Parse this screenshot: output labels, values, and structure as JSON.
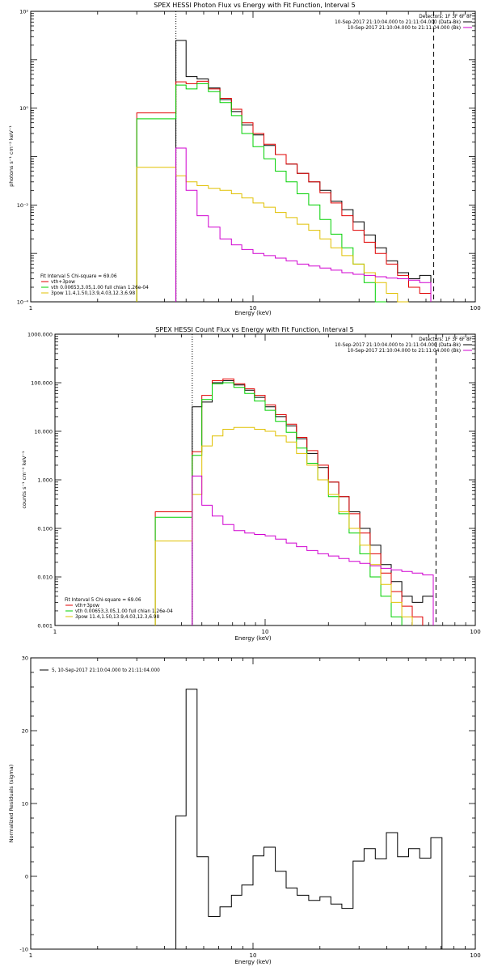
{
  "chart_data": [
    {
      "type": "line",
      "title": "SPEX HESSI Photon Flux vs Energy with Fit Function, Interval 5",
      "xlabel": "Energy (keV)",
      "ylabel": "photons s⁻¹ cm⁻² keV⁻¹",
      "xscale": "log",
      "yscale": "log",
      "xlim": [
        1,
        100
      ],
      "ylim": [
        0.0001,
        100
      ],
      "x_ticks": [
        "1",
        "10",
        "100"
      ],
      "y_ticks": [
        "10⁻⁴",
        "10⁻²",
        "10⁰",
        "10²"
      ],
      "legend_top": [
        "Detectors: 1F 3F 6F 8F",
        "10-Sep-2017 21:10:04.000 to 21:11:04.000 (Data-Bk)",
        "10-Sep-2017 21:10:04.000 to 21:11:04.000 (Bk)"
      ],
      "legend_bottom": [
        "Fit Interval 5   Chi-square = 69.06",
        "vth+3pow",
        "vth 0.00653,3.05,1.00  full chian 1.26e-04",
        "3pow 11.4,1.50,13.9,4.03,12.3,6.98"
      ],
      "vlines": [
        {
          "x": 4.5,
          "style": "dotted"
        },
        {
          "x": 65,
          "style": "dashed"
        }
      ],
      "bin_edges": [
        3,
        4.5,
        5,
        5.6,
        6.3,
        7.1,
        8,
        8.9,
        10,
        11.2,
        12.6,
        14.1,
        15.8,
        17.8,
        20,
        22.4,
        25.1,
        28.2,
        31.6,
        35.5,
        39.8,
        44.7,
        50.1,
        56.2,
        63.1
      ],
      "series": [
        {
          "name": "Data-Bk",
          "color": "#000000",
          "values": [
            null,
            25,
            4.5,
            4,
            2.6,
            1.5,
            0.85,
            0.45,
            0.28,
            0.17,
            0.11,
            0.07,
            0.045,
            0.03,
            0.02,
            0.012,
            0.008,
            0.0045,
            0.0024,
            0.0013,
            0.0007,
            0.0004,
            0.0003,
            0.00035
          ]
        },
        {
          "name": "vth+3pow",
          "color": "#e00000",
          "values": [
            0.8,
            3.5,
            3.2,
            3.6,
            2.5,
            1.6,
            0.95,
            0.5,
            0.3,
            0.18,
            0.11,
            0.07,
            0.045,
            0.03,
            0.018,
            0.011,
            0.006,
            0.003,
            0.0017,
            0.001,
            0.0006,
            0.00035,
            0.0002,
            0.00015
          ]
        },
        {
          "name": "vth",
          "color": "#00d000",
          "values": [
            0.6,
            3,
            2.5,
            3.2,
            2.2,
            1.3,
            0.7,
            0.3,
            0.16,
            0.09,
            0.05,
            0.03,
            0.017,
            0.01,
            0.005,
            0.0025,
            0.0013,
            0.0006,
            0.00025,
            0.0001,
            null,
            null,
            null,
            null
          ]
        },
        {
          "name": "3pow",
          "color": "#e0c000",
          "values": [
            0.06,
            0.04,
            0.03,
            0.025,
            0.022,
            0.02,
            0.017,
            0.014,
            0.011,
            0.009,
            0.007,
            0.0055,
            0.004,
            0.003,
            0.002,
            0.0013,
            0.0009,
            0.0006,
            0.0004,
            0.00025,
            0.00015,
            0.0001,
            null,
            null
          ]
        },
        {
          "name": "Bk",
          "color": "#d000d0",
          "values": [
            null,
            0.15,
            0.02,
            0.006,
            0.0035,
            0.002,
            0.0015,
            0.0012,
            0.001,
            0.0009,
            0.0008,
            0.0007,
            0.0006,
            0.00055,
            0.0005,
            0.00045,
            0.0004,
            0.00037,
            0.00035,
            0.00033,
            0.00031,
            0.0003,
            0.00028,
            0.00025
          ]
        }
      ]
    },
    {
      "type": "line",
      "title": "SPEX HESSI Count Flux vs Energy with Fit Function, Interval 5",
      "xlabel": "Energy (keV)",
      "ylabel": "counts s⁻¹ cm⁻² keV⁻¹",
      "xscale": "log",
      "yscale": "log",
      "xlim": [
        1,
        100
      ],
      "ylim": [
        0.001,
        1000
      ],
      "x_ticks": [
        "1",
        "10",
        "100"
      ],
      "y_ticks": [
        "0.001",
        "0.010",
        "0.100",
        "1.000",
        "10.000",
        "100.000",
        "1000.000"
      ],
      "legend_top": [
        "Detectors: 1F 3F 6F 8F",
        "10-Sep-2017 21:10:04.000 to 21:11:04.000 (Data-Bk)",
        "10-Sep-2017 21:10:04.000 to 21:11:04.000 (Bk)"
      ],
      "legend_bottom": [
        "Fit Interval 5   Chi-square = 69.06",
        "vth+3pow",
        "vth 0.00653,3.05,1.00  full chian 1.26e-04",
        "3pow 11.4,1.50,13.9,4.03,12.3,6.98"
      ],
      "vlines": [
        {
          "x": 4.5,
          "style": "dotted"
        },
        {
          "x": 65,
          "style": "dashed"
        }
      ],
      "bin_edges": [
        3,
        4.5,
        5,
        5.6,
        6.3,
        7.1,
        8,
        8.9,
        10,
        11.2,
        12.6,
        14.1,
        15.8,
        17.8,
        20,
        22.4,
        25.1,
        28.2,
        31.6,
        35.5,
        39.8,
        44.7,
        50.1,
        56.2,
        63.1
      ],
      "series": [
        {
          "name": "Data-Bk",
          "color": "#000000",
          "values": [
            null,
            32,
            40,
            100,
            110,
            90,
            70,
            50,
            32,
            20,
            13,
            7,
            3.5,
            1.8,
            0.9,
            0.45,
            0.22,
            0.1,
            0.045,
            0.018,
            0.008,
            0.004,
            0.003,
            0.004
          ]
        },
        {
          "name": "vth+3pow",
          "color": "#e00000",
          "values": [
            0.22,
            3.8,
            55,
            110,
            120,
            95,
            75,
            55,
            35,
            22,
            14,
            7.5,
            4,
            2,
            0.9,
            0.45,
            0.2,
            0.08,
            0.03,
            0.012,
            0.005,
            0.0025,
            0.0015,
            null
          ]
        },
        {
          "name": "vth",
          "color": "#00d000",
          "values": [
            0.17,
            3.2,
            45,
            95,
            100,
            80,
            60,
            42,
            27,
            16,
            9.5,
            4.5,
            2.2,
            1,
            0.45,
            0.2,
            0.08,
            0.03,
            0.01,
            0.004,
            0.0015,
            null,
            null,
            null
          ]
        },
        {
          "name": "3pow",
          "color": "#e0c000",
          "values": [
            0.055,
            0.5,
            5,
            8,
            11,
            12,
            12,
            11,
            10,
            8,
            6,
            3.5,
            2,
            1,
            0.5,
            0.22,
            0.1,
            0.045,
            0.018,
            0.007,
            0.003,
            0.0015,
            null,
            null
          ]
        },
        {
          "name": "Bk",
          "color": "#d000d0",
          "values": [
            null,
            1.2,
            0.3,
            0.18,
            0.12,
            0.09,
            0.08,
            0.075,
            0.07,
            0.06,
            0.05,
            0.042,
            0.035,
            0.03,
            0.027,
            0.024,
            0.021,
            0.019,
            0.017,
            0.015,
            0.014,
            0.013,
            0.012,
            0.011
          ]
        }
      ]
    },
    {
      "type": "line",
      "title": "",
      "xlabel": "Energy (keV)",
      "ylabel": "Normalized Residuals (sigma)",
      "xscale": "log",
      "yscale": "linear",
      "xlim": [
        1,
        100
      ],
      "ylim": [
        -10,
        30
      ],
      "x_ticks": [
        "1",
        "10",
        "100"
      ],
      "y_ticks": [
        "-10",
        "0",
        "10",
        "20",
        "30"
      ],
      "legend_top": [
        "5, 10-Sep-2017 21:10:04.000 to 21:11:04.000"
      ],
      "bin_edges": [
        4.5,
        5,
        5.6,
        6.3,
        7.1,
        8,
        8.9,
        10,
        11.2,
        12.6,
        14.1,
        15.8,
        17.8,
        20,
        22.4,
        25.1,
        28.2,
        31.6,
        35.5,
        39.8,
        44.7,
        50.1,
        56.2,
        63.1,
        70.8
      ],
      "series": [
        {
          "name": "5, 10-Sep-2017 21:10:04.000 to 21:11:04.000",
          "color": "#000000",
          "values": [
            8.3,
            25.7,
            2.7,
            -5.5,
            -4.2,
            -2.6,
            -1.2,
            2.8,
            4.0,
            0.7,
            -1.6,
            -2.6,
            -3.3,
            -2.8,
            -3.8,
            -4.4,
            2.1,
            3.8,
            2.4,
            6.0,
            2.7,
            3.8,
            2.5,
            5.3
          ]
        }
      ]
    }
  ]
}
